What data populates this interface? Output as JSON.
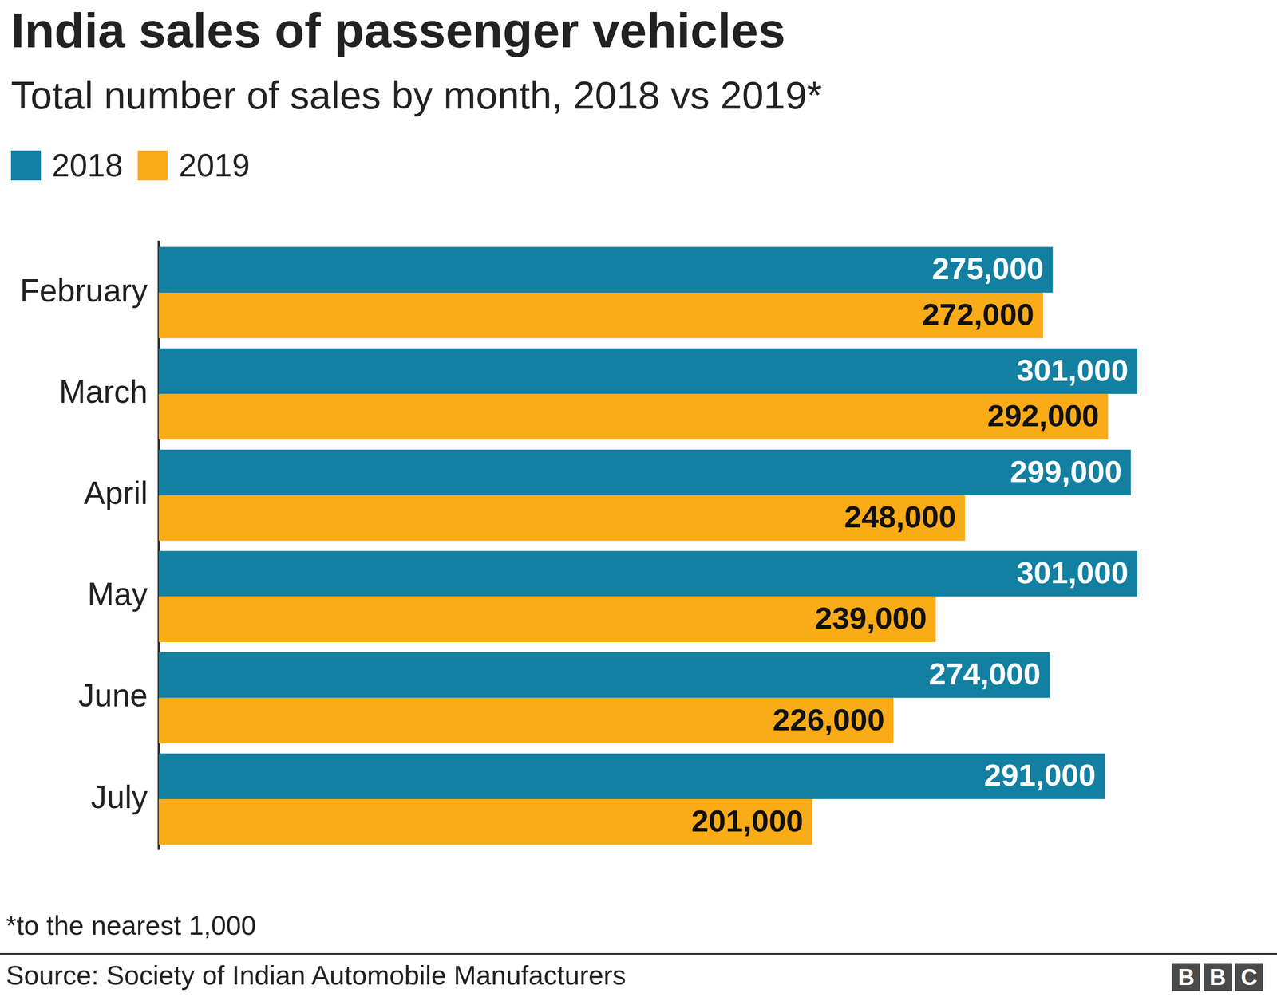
{
  "chart_data": {
    "type": "bar",
    "orientation": "horizontal",
    "title": "India sales of passenger vehicles",
    "subtitle": "Total number of sales by month, 2018 vs 2019*",
    "categories": [
      "February",
      "March",
      "April",
      "May",
      "June",
      "July"
    ],
    "series": [
      {
        "name": "2018",
        "color": "#1380a1",
        "values": [
          275000,
          301000,
          299000,
          301000,
          274000,
          291000
        ],
        "value_labels": [
          "275,000",
          "301,000",
          "299,000",
          "301,000",
          "274,000",
          "291,000"
        ]
      },
      {
        "name": "2019",
        "color": "#faab18",
        "values": [
          272000,
          292000,
          248000,
          239000,
          226000,
          201000
        ],
        "value_labels": [
          "272,000",
          "292,000",
          "248,000",
          "239,000",
          "226,000",
          "201,000"
        ]
      }
    ],
    "xlim": [
      0,
      301000
    ],
    "grid": false,
    "tick_labels": "y",
    "data_labels": true,
    "legend": "top-left",
    "annotations": [
      "*to the nearest 1,000"
    ],
    "source": "Source: Society of Indian Automobile Manufacturers",
    "logo": "BBC"
  }
}
